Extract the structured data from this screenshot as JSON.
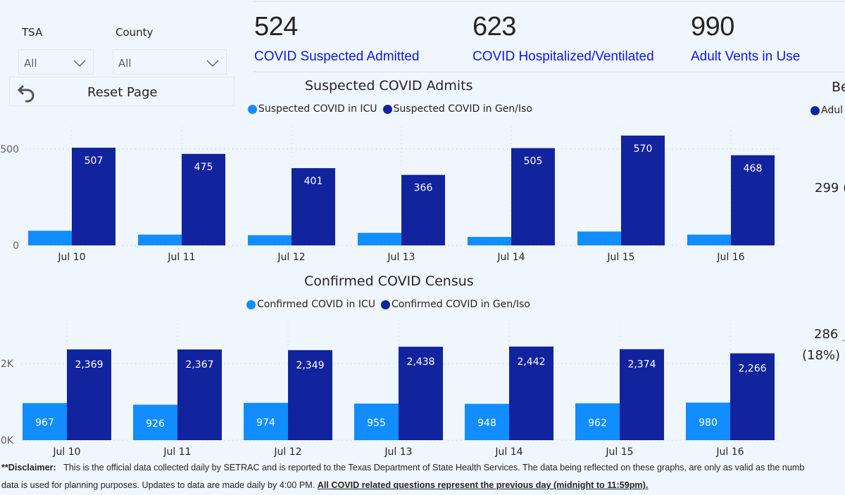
{
  "filters": {
    "tsa": {
      "label": "TSA",
      "value": "All"
    },
    "county": {
      "label": "County",
      "value": "All"
    },
    "reset_label": "Reset Page"
  },
  "kpis": [
    {
      "value": "524",
      "label": "COVID Suspected Admitted"
    },
    {
      "value": "623",
      "label": "COVID Hospitalized/Ventilated"
    },
    {
      "value": "990",
      "label": "Adult Vents in Use"
    }
  ],
  "colors": {
    "icu": "#118dff",
    "gen_iso": "#12239e",
    "kpi_label": "#0b17e8",
    "background": "#f0f6fd"
  },
  "side_visual": {
    "title_partial": "Be",
    "legend_partial": "Adul",
    "value_top": "299 (",
    "value_bottom": "286",
    "value_bottom_pct": "(18%)"
  },
  "chart_data": [
    {
      "type": "bar",
      "title": "Suspected COVID Admits",
      "categories": [
        "Jul 10",
        "Jul 11",
        "Jul 12",
        "Jul 13",
        "Jul 14",
        "Jul 15",
        "Jul 16"
      ],
      "series": [
        {
          "name": "Suspected COVID in ICU",
          "values": [
            76,
            56,
            53,
            65,
            44,
            72,
            56
          ],
          "labeled": false
        },
        {
          "name": "Suspected COVID in Gen/Iso",
          "values": [
            507,
            475,
            401,
            366,
            505,
            570,
            468
          ],
          "labeled": true
        }
      ],
      "yticks": [
        0,
        500
      ],
      "ytick_labels": [
        "0",
        "500"
      ],
      "ylim": [
        0,
        500
      ],
      "xlabel": "",
      "ylabel": "",
      "grid": true,
      "legend": "top-center"
    },
    {
      "type": "bar",
      "title": "Confirmed COVID Census",
      "categories": [
        "Jul 10",
        "Jul 11",
        "Jul 12",
        "Jul 13",
        "Jul 14",
        "Jul 15",
        "Jul 16"
      ],
      "series": [
        {
          "name": "Confirmed COVID in ICU",
          "values": [
            967,
            926,
            974,
            955,
            948,
            962,
            980
          ],
          "labeled": true,
          "label_texts": [
            "967",
            "926",
            "974",
            "955",
            "948",
            "962",
            "980"
          ]
        },
        {
          "name": "Confirmed COVID in Gen/Iso",
          "values": [
            2369,
            2367,
            2349,
            2438,
            2442,
            2374,
            2266
          ],
          "labeled": true,
          "label_texts": [
            "2,369",
            "2,367",
            "2,349",
            "2,438",
            "2,442",
            "2,374",
            "2,266"
          ]
        }
      ],
      "yticks": [
        0,
        2000
      ],
      "ytick_labels": [
        "0K",
        "2K"
      ],
      "ylim": [
        0,
        2000
      ],
      "xlabel": "",
      "ylabel": "",
      "grid": true,
      "legend": "top-center"
    }
  ],
  "disclaimer": {
    "prefix": "**Disclaimer:",
    "line1": "This is the official data collected daily by SETRAC and is reported to the Texas Department of State Health Services. The data being reflected on these graphs, are only as valid as the numb",
    "line2": "data is used for planning purposes. Updates to data are made daily by 4:00 PM.",
    "line2_emphasis": "All COVID related questions represent the previous day (midnight to 11:59pm)."
  }
}
